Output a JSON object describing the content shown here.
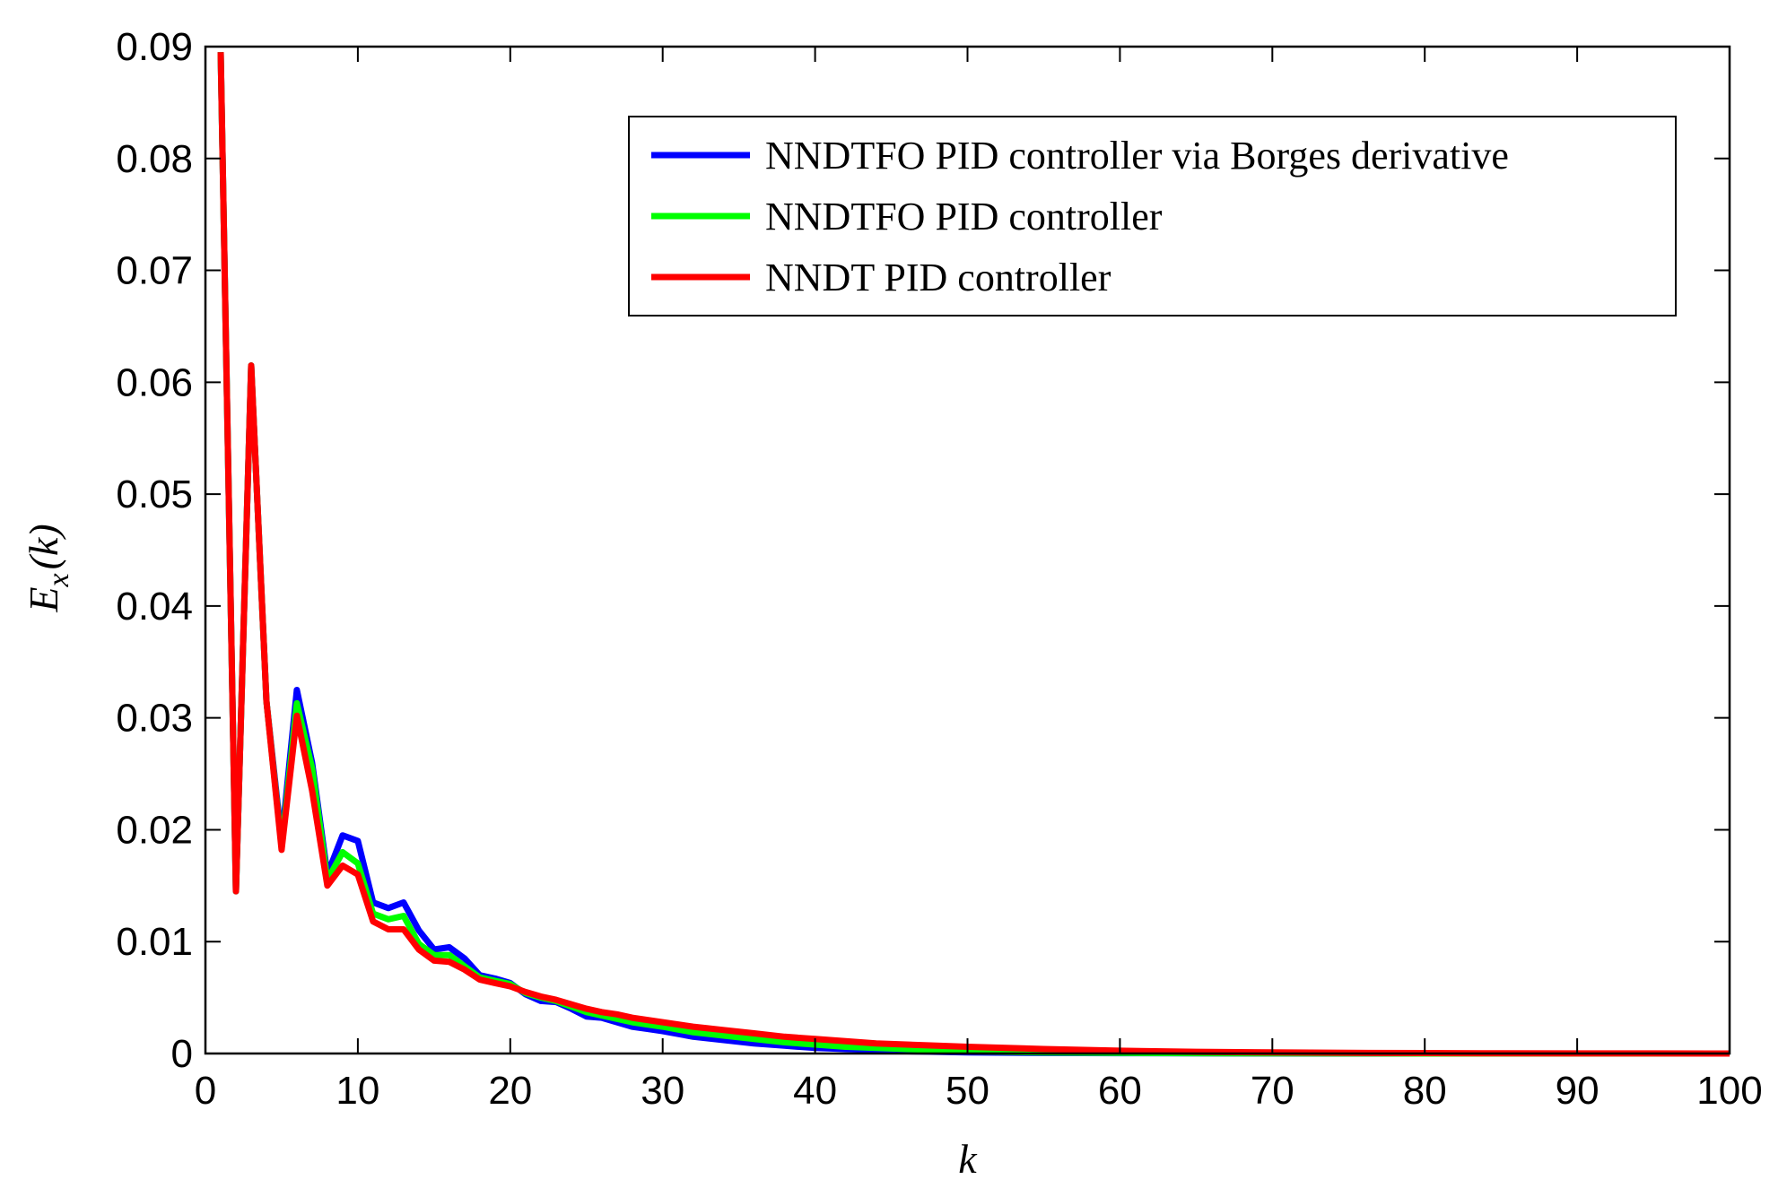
{
  "chart_data": {
    "type": "line",
    "title": "",
    "xlabel": "k",
    "ylabel_main": "E",
    "ylabel_sub": "x",
    "ylabel_arg": "(k)",
    "xlim": [
      0,
      100
    ],
    "ylim": [
      0,
      0.09
    ],
    "xticks": [
      0,
      10,
      20,
      30,
      40,
      50,
      60,
      70,
      80,
      90,
      100
    ],
    "xtick_labels": [
      "0",
      "10",
      "20",
      "30",
      "40",
      "50",
      "60",
      "70",
      "80",
      "90",
      "100"
    ],
    "yticks": [
      0,
      0.01,
      0.02,
      0.03,
      0.04,
      0.05,
      0.06,
      0.07,
      0.08,
      0.09
    ],
    "ytick_labels": [
      "0",
      "0.01",
      "0.02",
      "0.03",
      "0.04",
      "0.05",
      "0.06",
      "0.07",
      "0.08",
      "0.09"
    ],
    "grid": false,
    "legend_position": "top-right",
    "series": [
      {
        "name": "NNDTFO PID controller via Borges derivative",
        "color": "#0000ff",
        "x": [
          1,
          2,
          3,
          4,
          5,
          6,
          7,
          8,
          9,
          10,
          11,
          12,
          13,
          14,
          15,
          16,
          17,
          18,
          19,
          20,
          21,
          22,
          23,
          24,
          25,
          26,
          27,
          28,
          29,
          30,
          32,
          34,
          36,
          38,
          40,
          42,
          44,
          46,
          48,
          50,
          55,
          60,
          65,
          70,
          75,
          80,
          85,
          90,
          95,
          100
        ],
        "y": [
          0.0895,
          0.0145,
          0.0615,
          0.0315,
          0.019,
          0.0325,
          0.026,
          0.016,
          0.0195,
          0.019,
          0.0135,
          0.013,
          0.0135,
          0.011,
          0.0093,
          0.0095,
          0.0085,
          0.007,
          0.0067,
          0.0063,
          0.0053,
          0.0047,
          0.0046,
          0.004,
          0.0033,
          0.0032,
          0.0028,
          0.0024,
          0.0022,
          0.002,
          0.0015,
          0.0012,
          0.0009,
          0.0007,
          0.0005,
          0.0004,
          0.0003,
          0.0002,
          0.00015,
          0.0001,
          5e-05,
          3e-05,
          2e-05,
          1e-05,
          0,
          0,
          0,
          0,
          0,
          0
        ]
      },
      {
        "name": "NNDTFO PID controller",
        "color": "#00ff00",
        "x": [
          1,
          2,
          3,
          4,
          5,
          6,
          7,
          8,
          9,
          10,
          11,
          12,
          13,
          14,
          15,
          16,
          17,
          18,
          19,
          20,
          21,
          22,
          23,
          24,
          25,
          26,
          27,
          28,
          29,
          30,
          32,
          34,
          36,
          38,
          40,
          42,
          44,
          46,
          48,
          50,
          55,
          60,
          65,
          70,
          75,
          80,
          85,
          90,
          95,
          100
        ],
        "y": [
          0.0895,
          0.0145,
          0.0615,
          0.0315,
          0.0185,
          0.0313,
          0.0255,
          0.0155,
          0.018,
          0.017,
          0.0125,
          0.012,
          0.0123,
          0.0098,
          0.0088,
          0.0088,
          0.0078,
          0.0068,
          0.0065,
          0.0062,
          0.0054,
          0.005,
          0.0047,
          0.0042,
          0.0037,
          0.0034,
          0.0031,
          0.0028,
          0.0026,
          0.0024,
          0.0019,
          0.0016,
          0.0013,
          0.001,
          0.0008,
          0.0006,
          0.0005,
          0.0004,
          0.0003,
          0.0002,
          0.0001,
          6e-05,
          3e-05,
          2e-05,
          1e-05,
          0,
          0,
          0,
          0,
          0
        ]
      },
      {
        "name": "NNDT PID controller",
        "color": "#ff0000",
        "x": [
          1,
          2,
          3,
          4,
          5,
          6,
          7,
          8,
          9,
          10,
          11,
          12,
          13,
          14,
          15,
          16,
          17,
          18,
          19,
          20,
          21,
          22,
          23,
          24,
          25,
          26,
          27,
          28,
          29,
          30,
          32,
          34,
          36,
          38,
          40,
          42,
          44,
          46,
          48,
          50,
          55,
          60,
          65,
          70,
          75,
          80,
          85,
          90,
          95,
          100
        ],
        "y": [
          0.0895,
          0.0145,
          0.0615,
          0.0315,
          0.0182,
          0.0302,
          0.0235,
          0.015,
          0.0168,
          0.016,
          0.0118,
          0.0111,
          0.0111,
          0.0093,
          0.0083,
          0.0082,
          0.0075,
          0.0066,
          0.0063,
          0.006,
          0.0055,
          0.0051,
          0.0048,
          0.0044,
          0.004,
          0.0037,
          0.0035,
          0.0032,
          0.003,
          0.0028,
          0.0024,
          0.0021,
          0.0018,
          0.0015,
          0.0013,
          0.0011,
          0.0009,
          0.0008,
          0.0007,
          0.0006,
          0.0004,
          0.00025,
          0.00015,
          0.0001,
          6e-05,
          4e-05,
          2e-05,
          1e-05,
          1e-05,
          0
        ]
      }
    ]
  }
}
